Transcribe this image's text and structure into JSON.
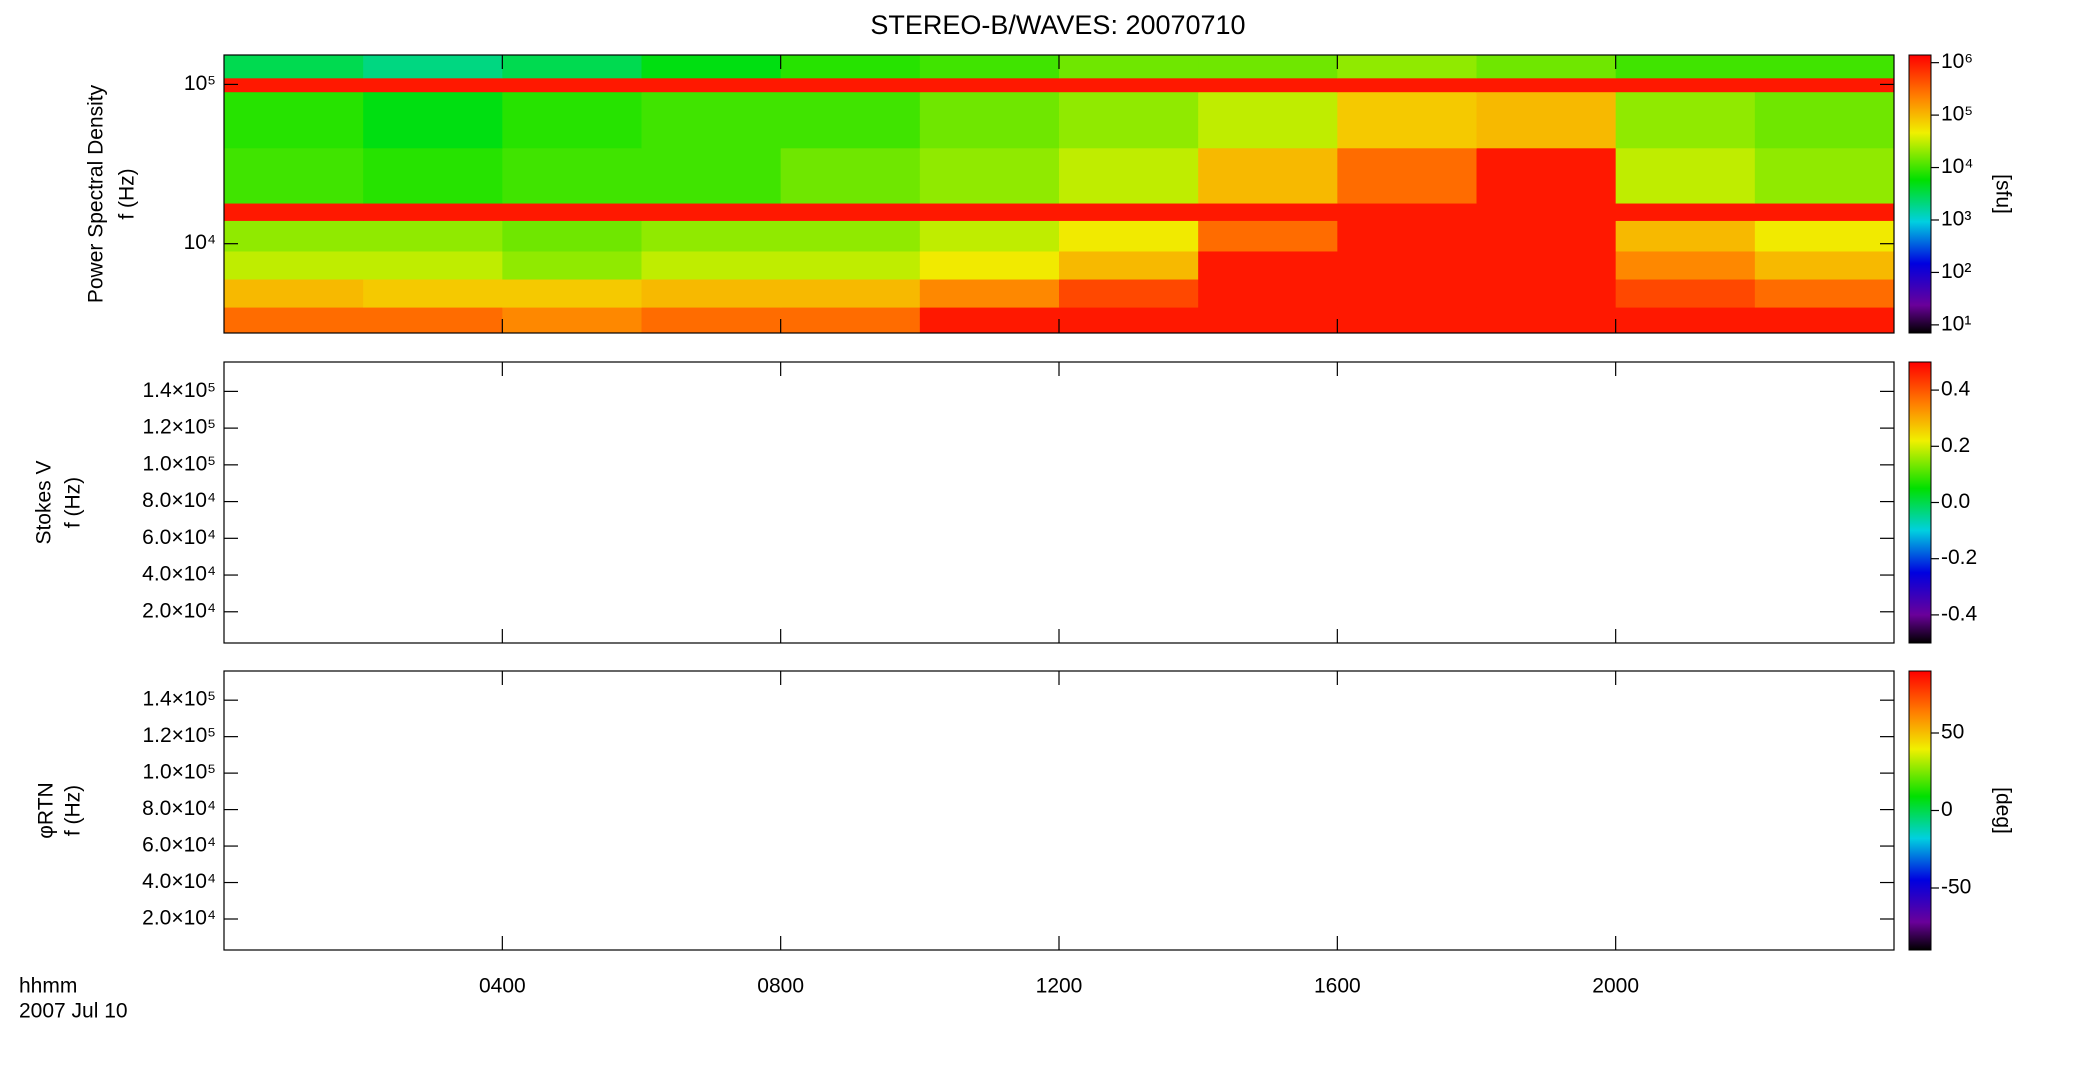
{
  "chart_data": {
    "type": "heatmap",
    "title": "STEREO-B/WAVES: 20070710",
    "x_label": [
      "hhmm",
      "2007 Jul 10"
    ],
    "xlim": [
      0,
      24
    ],
    "xticks": [
      {
        "value": 4,
        "label": "0400"
      },
      {
        "value": 8,
        "label": "0800"
      },
      {
        "value": 12,
        "label": "1200"
      },
      {
        "value": 16,
        "label": "1600"
      },
      {
        "value": 20,
        "label": "2000"
      }
    ],
    "panels": [
      {
        "ylabel": [
          "Power Spectral Density",
          "f (Hz)"
        ],
        "ylim": [
          2750,
          153000
        ],
        "ylog": true,
        "yticks": [
          {
            "value": 10000,
            "label": "10⁴"
          },
          {
            "value": 100000,
            "label": "10⁵"
          }
        ],
        "x_edges": [
          0,
          2,
          4,
          6,
          8,
          10,
          12,
          14,
          16,
          18,
          20,
          22,
          24
        ],
        "y_edges": [
          2750,
          4000,
          6000,
          9000,
          14000,
          18000,
          40000,
          90000,
          110000,
          153000
        ],
        "values": [
          [
            300000,
            300000,
            200000,
            300000,
            300000,
            1000000,
            1000000,
            1000000,
            1000000,
            1000000,
            1000000,
            1000000
          ],
          [
            100000,
            80000,
            80000,
            100000,
            100000,
            200000,
            500000,
            1000000,
            1000000,
            1000000,
            500000,
            300000
          ],
          [
            30000,
            30000,
            20000,
            30000,
            30000,
            50000,
            100000,
            1000000,
            1000000,
            1000000,
            200000,
            100000
          ],
          [
            20000,
            20000,
            15000,
            20000,
            20000,
            30000,
            50000,
            300000,
            1000000,
            1000000,
            100000,
            50000
          ],
          [
            1000000,
            1000000,
            1000000,
            1000000,
            1000000,
            1000000,
            1000000,
            1000000,
            1000000,
            1000000,
            1000000,
            1000000
          ],
          [
            10000,
            8000,
            10000,
            10000,
            15000,
            20000,
            30000,
            100000,
            300000,
            1000000,
            30000,
            20000
          ],
          [
            8000,
            5000,
            8000,
            10000,
            10000,
            15000,
            20000,
            30000,
            80000,
            100000,
            20000,
            15000
          ],
          [
            1000000,
            1000000,
            1000000,
            1000000,
            1000000,
            1000000,
            1000000,
            1000000,
            1000000,
            1000000,
            1000000,
            1000000
          ],
          [
            3000,
            2000,
            3000,
            5000,
            8000,
            10000,
            15000,
            15000,
            20000,
            15000,
            10000,
            10000
          ]
        ],
        "colorbar": {
          "clim": [
            7,
            1400000
          ],
          "log": true,
          "label": "[sfu]",
          "ticks": [
            {
              "value": 10,
              "label": "10¹"
            },
            {
              "value": 100,
              "label": "10²"
            },
            {
              "value": 1000,
              "label": "10³"
            },
            {
              "value": 10000,
              "label": "10⁴"
            },
            {
              "value": 100000,
              "label": "10⁵"
            },
            {
              "value": 1000000,
              "label": "10⁶"
            }
          ]
        }
      },
      {
        "ylabel": [
          "Stokes V",
          "f (Hz)"
        ],
        "ylim": [
          3000,
          156000
        ],
        "ylog": false,
        "yticks": [
          {
            "value": 20000,
            "label": "2.0×10⁴"
          },
          {
            "value": 40000,
            "label": "4.0×10⁴"
          },
          {
            "value": 60000,
            "label": "6.0×10⁴"
          },
          {
            "value": 80000,
            "label": "8.0×10⁴"
          },
          {
            "value": 100000,
            "label": "1.0×10⁵"
          },
          {
            "value": 120000,
            "label": "1.2×10⁵"
          },
          {
            "value": 140000,
            "label": "1.4×10⁵"
          }
        ],
        "colorbar": {
          "clim": [
            -0.5,
            0.5
          ],
          "log": false,
          "ticks": [
            -0.4,
            -0.2,
            {
              "value": 0,
              "label": "0.0"
            },
            0.2,
            0.4
          ]
        }
      },
      {
        "ylabel": [
          "φRTN",
          "f (Hz)"
        ],
        "ylim": [
          3000,
          156000
        ],
        "ylog": false,
        "yticks": [
          {
            "value": 20000,
            "label": "2.0×10⁴"
          },
          {
            "value": 40000,
            "label": "4.0×10⁴"
          },
          {
            "value": 60000,
            "label": "6.0×10⁴"
          },
          {
            "value": 80000,
            "label": "8.0×10⁴"
          },
          {
            "value": 100000,
            "label": "1.0×10⁵"
          },
          {
            "value": 120000,
            "label": "1.2×10⁵"
          },
          {
            "value": 140000,
            "label": "1.4×10⁵"
          }
        ],
        "colorbar": {
          "clim": [
            -90,
            90
          ],
          "log": false,
          "label": "[deg]",
          "ticks": [
            -50,
            0,
            50
          ]
        }
      }
    ]
  }
}
